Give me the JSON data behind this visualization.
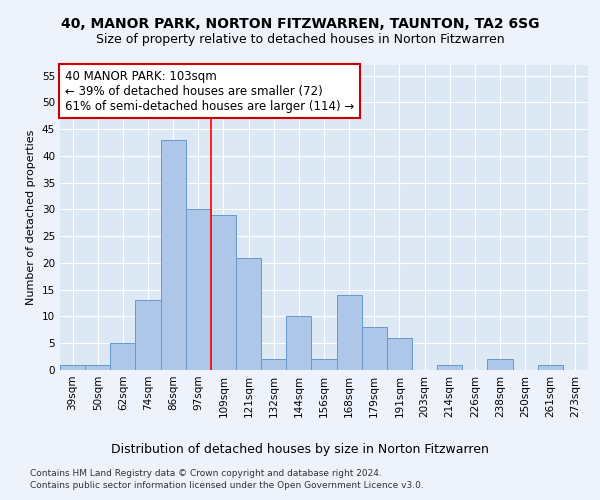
{
  "title": "40, MANOR PARK, NORTON FITZWARREN, TAUNTON, TA2 6SG",
  "subtitle": "Size of property relative to detached houses in Norton Fitzwarren",
  "xlabel": "Distribution of detached houses by size in Norton Fitzwarren",
  "ylabel": "Number of detached properties",
  "categories": [
    "39sqm",
    "50sqm",
    "62sqm",
    "74sqm",
    "86sqm",
    "97sqm",
    "109sqm",
    "121sqm",
    "132sqm",
    "144sqm",
    "156sqm",
    "168sqm",
    "179sqm",
    "191sqm",
    "203sqm",
    "214sqm",
    "226sqm",
    "238sqm",
    "250sqm",
    "261sqm",
    "273sqm"
  ],
  "values": [
    1,
    1,
    5,
    13,
    43,
    30,
    29,
    21,
    2,
    10,
    2,
    14,
    8,
    6,
    0,
    1,
    0,
    2,
    0,
    1,
    0
  ],
  "bar_color": "#aec6e8",
  "bar_edge_color": "#6699cc",
  "ylim": [
    0,
    57
  ],
  "yticks": [
    0,
    5,
    10,
    15,
    20,
    25,
    30,
    35,
    40,
    45,
    50,
    55
  ],
  "red_line_x": 5.5,
  "annotation_line1": "40 MANOR PARK: 103sqm",
  "annotation_line2": "← 39% of detached houses are smaller (72)",
  "annotation_line3": "61% of semi-detached houses are larger (114) →",
  "annotation_box_color": "#ffffff",
  "annotation_box_edge_color": "#cc0000",
  "footer_line1": "Contains HM Land Registry data © Crown copyright and database right 2024.",
  "footer_line2": "Contains public sector information licensed under the Open Government Licence v3.0.",
  "background_color": "#dde8f5",
  "fig_background_color": "#eef2fa",
  "grid_color": "#ffffff",
  "title_fontsize": 10,
  "subtitle_fontsize": 9,
  "xlabel_fontsize": 9,
  "ylabel_fontsize": 8,
  "tick_fontsize": 7.5,
  "annotation_fontsize": 8.5,
  "footer_fontsize": 6.5
}
